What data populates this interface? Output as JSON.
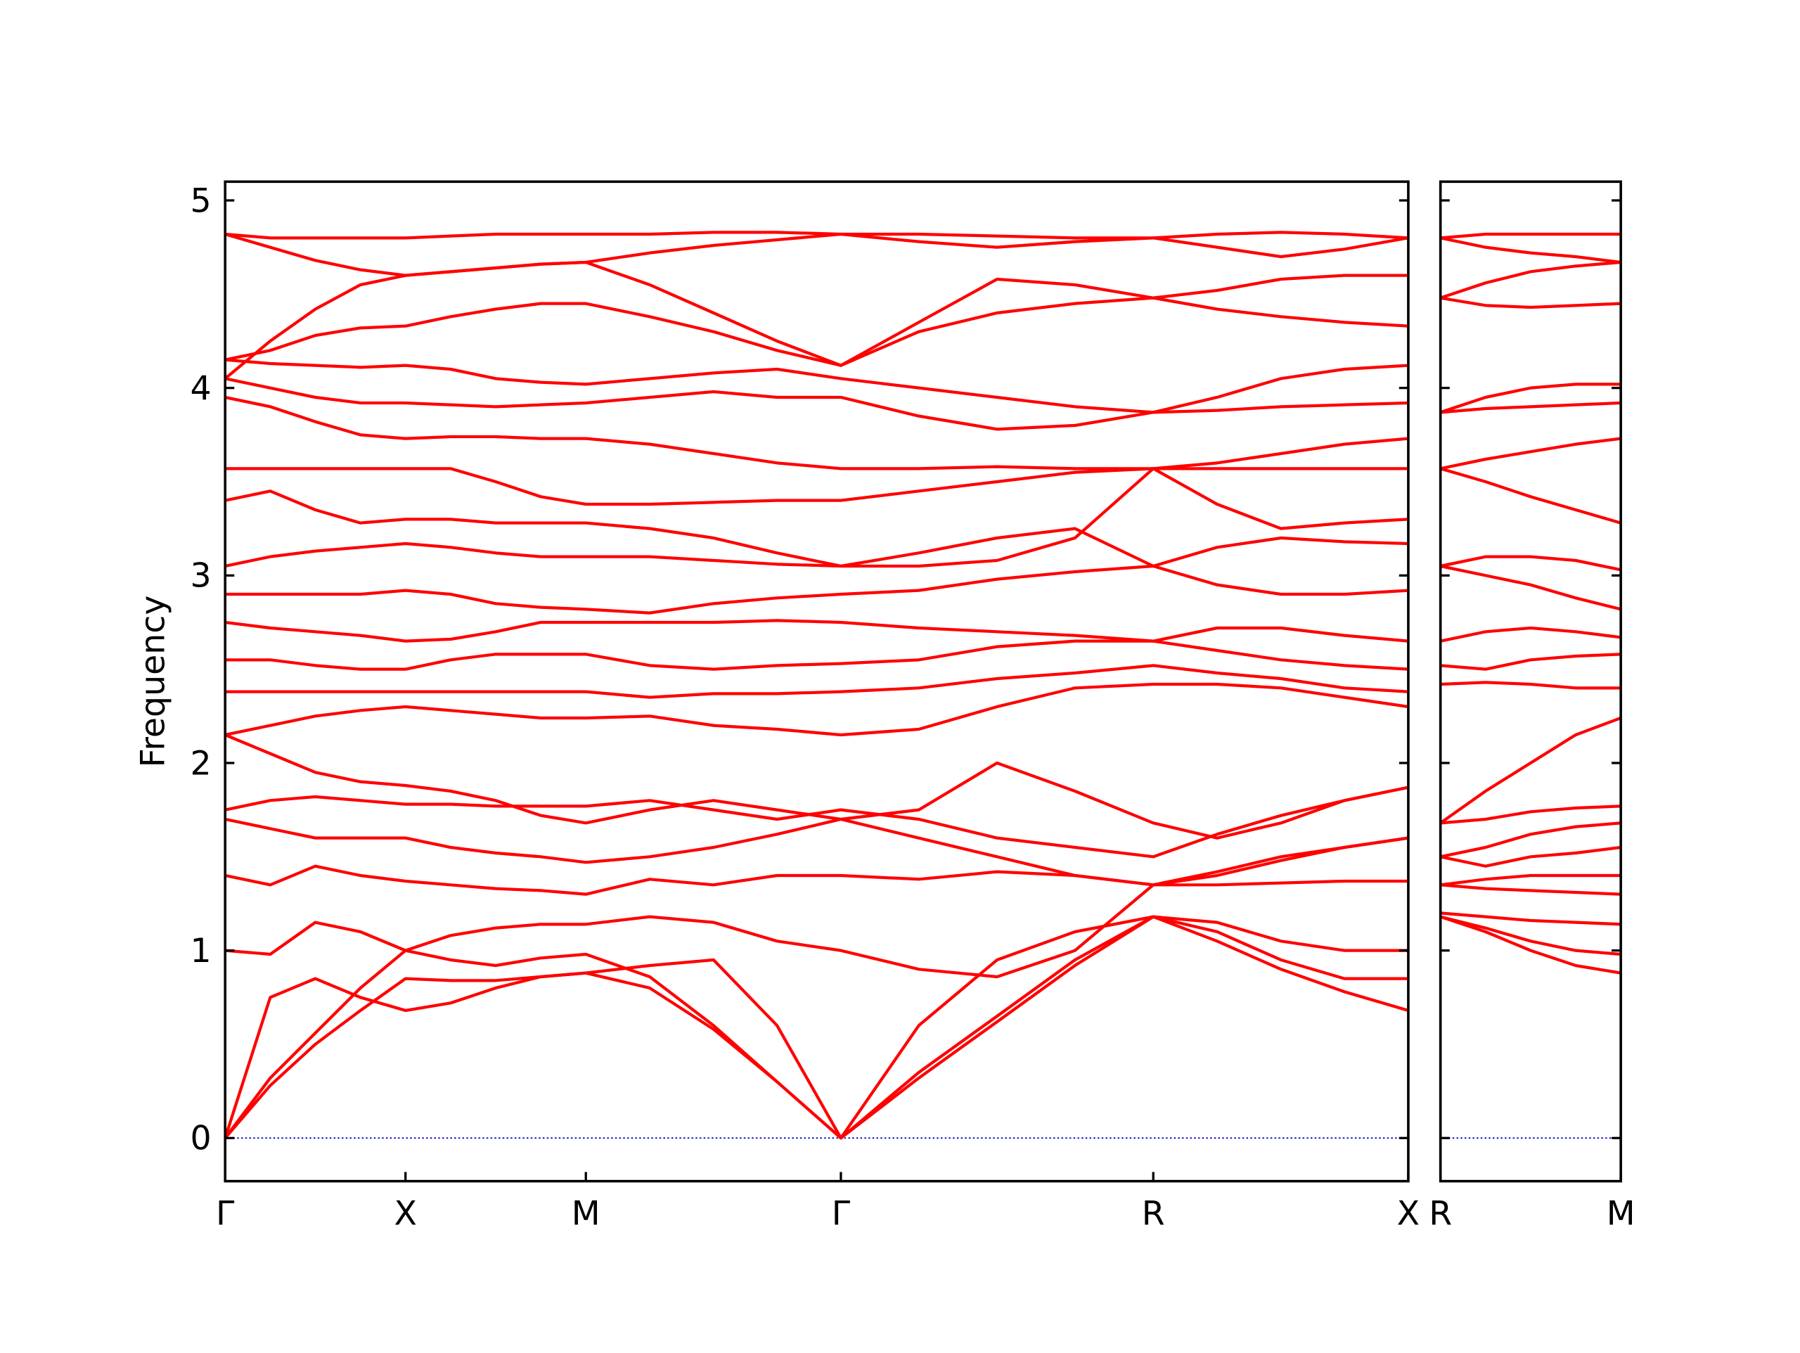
{
  "chart_data": [
    {
      "type": "line",
      "ylabel": "Frequency",
      "color": "#ff0000",
      "hline": 0,
      "hline_color": "#0000cc",
      "xlim": [
        0,
        3.28
      ],
      "ylim": [
        -0.23,
        5.1
      ],
      "yticks": [
        0,
        1,
        2,
        3,
        4,
        5
      ],
      "ytick_labels": true,
      "xticks": [
        {
          "value": 0,
          "label": "Γ"
        },
        {
          "value": 0.5,
          "label": "X"
        },
        {
          "value": 1.0,
          "label": "M"
        },
        {
          "value": 1.707,
          "label": "Γ"
        },
        {
          "value": 2.573,
          "label": "R"
        },
        {
          "value": 3.28,
          "label": "X"
        }
      ],
      "x": [
        0,
        0.125,
        0.25,
        0.375,
        0.5,
        0.625,
        0.75,
        0.875,
        1.0,
        1.177,
        1.354,
        1.53,
        1.707,
        1.923,
        2.14,
        2.356,
        2.573,
        2.75,
        2.927,
        3.103,
        3.28
      ],
      "series": [
        {
          "values": [
            0,
            0.75,
            0.85,
            0.75,
            0.68,
            0.72,
            0.8,
            0.86,
            0.88,
            0.8,
            0.58,
            0.3,
            0,
            0.35,
            0.65,
            0.95,
            1.18,
            1.05,
            0.9,
            0.78,
            0.68
          ]
        },
        {
          "values": [
            0,
            0.28,
            0.5,
            0.68,
            0.85,
            0.84,
            0.84,
            0.86,
            0.88,
            0.92,
            0.95,
            0.6,
            0,
            0.32,
            0.62,
            0.92,
            1.18,
            1.1,
            0.95,
            0.85,
            0.85
          ]
        },
        {
          "values": [
            0,
            0.32,
            0.56,
            0.8,
            1.0,
            0.95,
            0.92,
            0.96,
            0.98,
            0.86,
            0.6,
            0.3,
            0,
            0.6,
            0.95,
            1.1,
            1.18,
            1.15,
            1.05,
            1.0,
            1.0
          ]
        },
        {
          "values": [
            1.0,
            0.98,
            1.15,
            1.1,
            1.0,
            1.08,
            1.12,
            1.14,
            1.14,
            1.18,
            1.15,
            1.05,
            1.0,
            0.9,
            0.86,
            1.0,
            1.35,
            1.35,
            1.36,
            1.37,
            1.37
          ]
        },
        {
          "values": [
            1.4,
            1.35,
            1.45,
            1.4,
            1.37,
            1.35,
            1.33,
            1.32,
            1.3,
            1.38,
            1.35,
            1.4,
            1.4,
            1.38,
            1.42,
            1.4,
            1.35,
            1.4,
            1.48,
            1.55,
            1.6
          ]
        },
        {
          "values": [
            1.7,
            1.65,
            1.6,
            1.6,
            1.6,
            1.55,
            1.52,
            1.5,
            1.47,
            1.5,
            1.55,
            1.62,
            1.7,
            1.6,
            1.5,
            1.4,
            1.35,
            1.42,
            1.5,
            1.55,
            1.6
          ]
        },
        {
          "values": [
            1.75,
            1.8,
            1.82,
            1.8,
            1.78,
            1.78,
            1.77,
            1.77,
            1.77,
            1.8,
            1.75,
            1.7,
            1.75,
            1.7,
            1.6,
            1.55,
            1.5,
            1.62,
            1.72,
            1.8,
            1.87
          ]
        },
        {
          "values": [
            2.15,
            2.05,
            1.95,
            1.9,
            1.88,
            1.85,
            1.8,
            1.72,
            1.68,
            1.75,
            1.8,
            1.75,
            1.7,
            1.75,
            2.0,
            1.85,
            1.68,
            1.6,
            1.68,
            1.8,
            1.87
          ]
        },
        {
          "values": [
            2.15,
            2.2,
            2.25,
            2.28,
            2.3,
            2.28,
            2.26,
            2.24,
            2.24,
            2.25,
            2.2,
            2.18,
            2.15,
            2.18,
            2.3,
            2.4,
            2.42,
            2.42,
            2.4,
            2.35,
            2.3
          ]
        },
        {
          "values": [
            2.38,
            2.38,
            2.38,
            2.38,
            2.38,
            2.38,
            2.38,
            2.38,
            2.38,
            2.35,
            2.37,
            2.37,
            2.38,
            2.4,
            2.45,
            2.48,
            2.52,
            2.48,
            2.45,
            2.4,
            2.38
          ]
        },
        {
          "values": [
            2.55,
            2.55,
            2.52,
            2.5,
            2.5,
            2.55,
            2.58,
            2.58,
            2.58,
            2.52,
            2.5,
            2.52,
            2.53,
            2.55,
            2.62,
            2.65,
            2.65,
            2.72,
            2.72,
            2.68,
            2.65
          ]
        },
        {
          "values": [
            2.75,
            2.72,
            2.7,
            2.68,
            2.65,
            2.66,
            2.7,
            2.75,
            2.75,
            2.75,
            2.75,
            2.76,
            2.75,
            2.72,
            2.7,
            2.68,
            2.65,
            2.6,
            2.55,
            2.52,
            2.5
          ]
        },
        {
          "values": [
            2.9,
            2.9,
            2.9,
            2.9,
            2.92,
            2.9,
            2.85,
            2.83,
            2.82,
            2.8,
            2.85,
            2.88,
            2.9,
            2.92,
            2.98,
            3.02,
            3.05,
            2.95,
            2.9,
            2.9,
            2.92
          ]
        },
        {
          "values": [
            3.05,
            3.1,
            3.13,
            3.15,
            3.17,
            3.15,
            3.12,
            3.1,
            3.1,
            3.1,
            3.08,
            3.06,
            3.05,
            3.12,
            3.2,
            3.25,
            3.05,
            3.15,
            3.2,
            3.18,
            3.17
          ]
        },
        {
          "values": [
            3.4,
            3.45,
            3.35,
            3.28,
            3.3,
            3.3,
            3.28,
            3.28,
            3.28,
            3.25,
            3.2,
            3.12,
            3.05,
            3.05,
            3.08,
            3.2,
            3.57,
            3.38,
            3.25,
            3.28,
            3.3
          ]
        },
        {
          "values": [
            3.57,
            3.57,
            3.57,
            3.57,
            3.57,
            3.57,
            3.5,
            3.42,
            3.38,
            3.38,
            3.39,
            3.4,
            3.4,
            3.45,
            3.5,
            3.55,
            3.57,
            3.57,
            3.57,
            3.57,
            3.57
          ]
        },
        {
          "values": [
            3.95,
            3.9,
            3.82,
            3.75,
            3.73,
            3.74,
            3.74,
            3.73,
            3.73,
            3.7,
            3.65,
            3.6,
            3.57,
            3.57,
            3.58,
            3.57,
            3.57,
            3.6,
            3.65,
            3.7,
            3.73
          ]
        },
        {
          "values": [
            4.05,
            4.0,
            3.95,
            3.92,
            3.92,
            3.91,
            3.9,
            3.91,
            3.92,
            3.95,
            3.98,
            3.95,
            3.95,
            3.85,
            3.78,
            3.8,
            3.87,
            3.88,
            3.9,
            3.91,
            3.92
          ]
        },
        {
          "values": [
            4.15,
            4.13,
            4.12,
            4.11,
            4.12,
            4.1,
            4.05,
            4.03,
            4.02,
            4.05,
            4.08,
            4.1,
            4.05,
            4.0,
            3.95,
            3.9,
            3.87,
            3.95,
            4.05,
            4.1,
            4.12
          ]
        },
        {
          "values": [
            4.15,
            4.2,
            4.28,
            4.32,
            4.33,
            4.38,
            4.42,
            4.45,
            4.45,
            4.38,
            4.3,
            4.2,
            4.12,
            4.3,
            4.4,
            4.45,
            4.48,
            4.42,
            4.38,
            4.35,
            4.33
          ]
        },
        {
          "values": [
            4.05,
            4.25,
            4.42,
            4.55,
            4.6,
            4.62,
            4.64,
            4.66,
            4.67,
            4.55,
            4.4,
            4.25,
            4.12,
            4.35,
            4.58,
            4.55,
            4.48,
            4.52,
            4.58,
            4.6,
            4.6
          ]
        },
        {
          "values": [
            4.82,
            4.8,
            4.8,
            4.8,
            4.8,
            4.81,
            4.82,
            4.82,
            4.82,
            4.82,
            4.83,
            4.83,
            4.82,
            4.82,
            4.81,
            4.8,
            4.8,
            4.82,
            4.83,
            4.82,
            4.8
          ]
        },
        {
          "values": [
            4.82,
            4.75,
            4.68,
            4.63,
            4.6,
            4.62,
            4.64,
            4.66,
            4.67,
            4.72,
            4.76,
            4.79,
            4.82,
            4.78,
            4.75,
            4.78,
            4.8,
            4.75,
            4.7,
            4.74,
            4.8
          ]
        }
      ]
    },
    {
      "type": "line",
      "color": "#ff0000",
      "hline": 0,
      "hline_color": "#0000cc",
      "xlim": [
        0,
        0.5
      ],
      "ylim": [
        -0.23,
        5.1
      ],
      "yticks": [
        0,
        1,
        2,
        3,
        4,
        5
      ],
      "ytick_labels": false,
      "xticks": [
        {
          "value": 0,
          "label": "R"
        },
        {
          "value": 0.5,
          "label": "M"
        }
      ],
      "x": [
        0,
        0.125,
        0.25,
        0.375,
        0.5
      ],
      "series": [
        {
          "values": [
            1.18,
            1.1,
            1.0,
            0.92,
            0.88
          ]
        },
        {
          "values": [
            1.18,
            1.12,
            1.05,
            1.0,
            0.98
          ]
        },
        {
          "values": [
            1.2,
            1.18,
            1.16,
            1.15,
            1.14
          ]
        },
        {
          "values": [
            1.35,
            1.33,
            1.32,
            1.31,
            1.3
          ]
        },
        {
          "values": [
            1.35,
            1.38,
            1.4,
            1.4,
            1.4
          ]
        },
        {
          "values": [
            1.5,
            1.45,
            1.5,
            1.52,
            1.55
          ]
        },
        {
          "values": [
            1.5,
            1.55,
            1.62,
            1.66,
            1.68
          ]
        },
        {
          "values": [
            1.68,
            1.7,
            1.74,
            1.76,
            1.77
          ]
        },
        {
          "values": [
            1.68,
            1.85,
            2.0,
            2.15,
            2.24
          ]
        },
        {
          "values": [
            2.42,
            2.43,
            2.42,
            2.4,
            2.4
          ]
        },
        {
          "values": [
            2.52,
            2.5,
            2.55,
            2.57,
            2.58
          ]
        },
        {
          "values": [
            2.65,
            2.7,
            2.72,
            2.7,
            2.67
          ]
        },
        {
          "values": [
            3.05,
            3.0,
            2.95,
            2.88,
            2.82
          ]
        },
        {
          "values": [
            3.05,
            3.1,
            3.1,
            3.08,
            3.03
          ]
        },
        {
          "values": [
            3.57,
            3.5,
            3.42,
            3.35,
            3.28
          ]
        },
        {
          "values": [
            3.57,
            3.62,
            3.66,
            3.7,
            3.73
          ]
        },
        {
          "values": [
            3.87,
            3.89,
            3.9,
            3.91,
            3.92
          ]
        },
        {
          "values": [
            3.87,
            3.95,
            4.0,
            4.02,
            4.02
          ]
        },
        {
          "values": [
            4.48,
            4.44,
            4.43,
            4.44,
            4.45
          ]
        },
        {
          "values": [
            4.48,
            4.56,
            4.62,
            4.65,
            4.67
          ]
        },
        {
          "values": [
            4.8,
            4.75,
            4.72,
            4.7,
            4.67
          ]
        },
        {
          "values": [
            4.8,
            4.82,
            4.82,
            4.82,
            4.82
          ]
        }
      ]
    }
  ]
}
